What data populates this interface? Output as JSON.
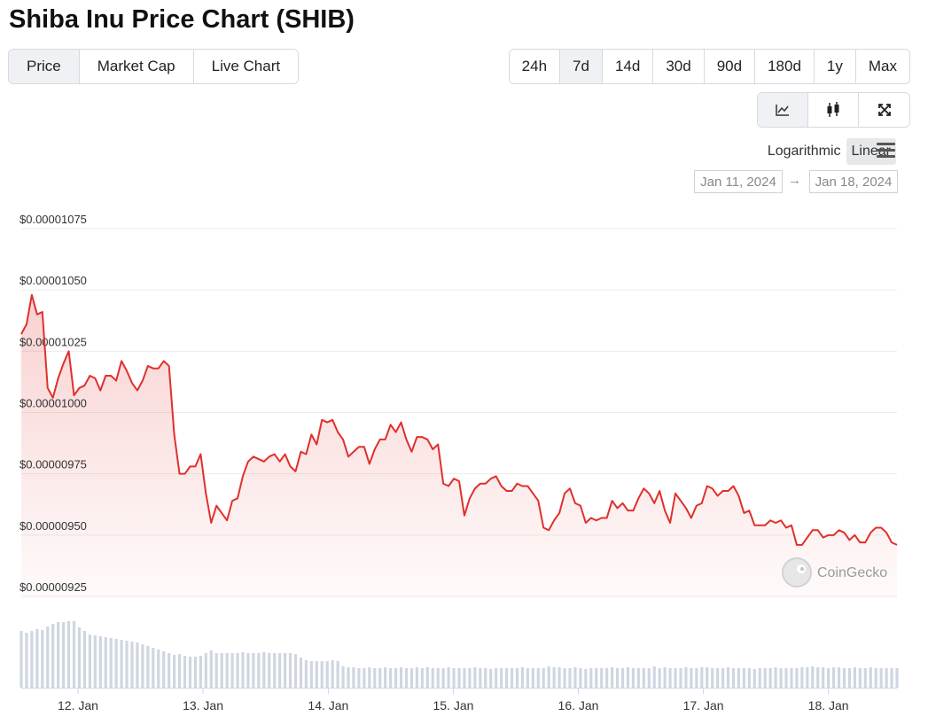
{
  "title": "Shiba Inu Price Chart (SHIB)",
  "tabs": {
    "items": [
      "Price",
      "Market Cap",
      "Live Chart"
    ],
    "active": 0
  },
  "ranges": {
    "items": [
      "24h",
      "7d",
      "14d",
      "30d",
      "90d",
      "180d",
      "1y",
      "Max"
    ],
    "active": 1
  },
  "scale_options": {
    "items": [
      "Logarithmic",
      "Linear"
    ],
    "active": 1
  },
  "date_range": {
    "from": "Jan 11, 2024",
    "separator": "→",
    "to": "Jan 18, 2024"
  },
  "chart_data": {
    "type": "line",
    "watermark": "CoinGecko",
    "log_scale": false,
    "grid": true,
    "x": [
      0,
      1,
      2,
      3,
      4,
      5,
      6,
      7,
      8,
      9,
      10,
      11,
      12,
      13,
      14,
      15,
      16,
      17,
      18,
      19,
      20,
      21,
      22,
      23,
      24,
      25,
      26,
      27,
      28,
      29,
      30,
      31,
      32,
      33,
      34,
      35,
      36,
      37,
      38,
      39,
      40,
      41,
      42,
      43,
      44,
      45,
      46,
      47,
      48,
      49,
      50,
      51,
      52,
      53,
      54,
      55,
      56,
      57,
      58,
      59,
      60,
      61,
      62,
      63,
      64,
      65,
      66,
      67,
      68,
      69,
      70,
      71,
      72,
      73,
      74,
      75,
      76,
      77,
      78,
      79,
      80,
      81,
      82,
      83,
      84,
      85,
      86,
      87,
      88,
      89,
      90,
      91,
      92,
      93,
      94,
      95,
      96,
      97,
      98,
      99,
      100,
      101,
      102,
      103,
      104,
      105,
      106,
      107,
      108,
      109,
      110,
      111,
      112,
      113,
      114,
      115,
      116,
      117,
      118,
      119,
      120,
      121,
      122,
      123,
      124,
      125,
      126,
      127,
      128,
      129,
      130,
      131,
      132,
      133,
      134,
      135,
      136,
      137,
      138,
      139,
      140,
      141,
      142,
      143,
      144,
      145,
      146,
      147,
      148,
      149,
      150,
      151,
      152,
      153,
      154,
      155,
      156,
      157,
      158,
      159,
      160,
      161,
      162,
      163,
      164,
      165,
      166
    ],
    "series": [
      {
        "color": "#e0302c",
        "values": [
          1.032e-05,
          1.036e-05,
          1.048e-05,
          1.04e-05,
          1.041e-05,
          1.01e-05,
          1.006e-05,
          1.014e-05,
          1.02e-05,
          1.025e-05,
          1.007e-05,
          1.01e-05,
          1.011e-05,
          1.015e-05,
          1.014e-05,
          1.009e-05,
          1.015e-05,
          1.015e-05,
          1.013e-05,
          1.021e-05,
          1.017e-05,
          1.012e-05,
          1.009e-05,
          1.013e-05,
          1.019e-05,
          1.018e-05,
          1.018e-05,
          1.021e-05,
          1.019e-05,
          9.91e-06,
          9.75e-06,
          9.75e-06,
          9.78e-06,
          9.78e-06,
          9.83e-06,
          9.67e-06,
          9.55e-06,
          9.62e-06,
          9.59e-06,
          9.56e-06,
          9.64e-06,
          9.65e-06,
          9.74e-06,
          9.8e-06,
          9.82e-06,
          9.81e-06,
          9.8e-06,
          9.82e-06,
          9.83e-06,
          9.8e-06,
          9.83e-06,
          9.78e-06,
          9.76e-06,
          9.84e-06,
          9.83e-06,
          9.91e-06,
          9.87e-06,
          9.97e-06,
          9.96e-06,
          9.97e-06,
          9.92e-06,
          9.89e-06,
          9.82e-06,
          9.84e-06,
          9.86e-06,
          9.86e-06,
          9.79e-06,
          9.85e-06,
          9.89e-06,
          9.89e-06,
          9.95e-06,
          9.92e-06,
          9.96e-06,
          9.89e-06,
          9.84e-06,
          9.9e-06,
          9.9e-06,
          9.89e-06,
          9.85e-06,
          9.87e-06,
          9.71e-06,
          9.7e-06,
          9.73e-06,
          9.72e-06,
          9.58e-06,
          9.65e-06,
          9.69e-06,
          9.71e-06,
          9.71e-06,
          9.73e-06,
          9.74e-06,
          9.7e-06,
          9.68e-06,
          9.68e-06,
          9.71e-06,
          9.7e-06,
          9.7e-06,
          9.67e-06,
          9.64e-06,
          9.53e-06,
          9.52e-06,
          9.56e-06,
          9.59e-06,
          9.67e-06,
          9.69e-06,
          9.63e-06,
          9.62e-06,
          9.55e-06,
          9.57e-06,
          9.56e-06,
          9.57e-06,
          9.57e-06,
          9.64e-06,
          9.61e-06,
          9.63e-06,
          9.6e-06,
          9.6e-06,
          9.65e-06,
          9.69e-06,
          9.67e-06,
          9.63e-06,
          9.68e-06,
          9.6e-06,
          9.55e-06,
          9.67e-06,
          9.64e-06,
          9.61e-06,
          9.57e-06,
          9.62e-06,
          9.63e-06,
          9.7e-06,
          9.69e-06,
          9.66e-06,
          9.68e-06,
          9.68e-06,
          9.7e-06,
          9.66e-06,
          9.59e-06,
          9.6e-06,
          9.54e-06,
          9.54e-06,
          9.54e-06,
          9.56e-06,
          9.55e-06,
          9.56e-06,
          9.53e-06,
          9.54e-06,
          9.46e-06,
          9.46e-06,
          9.49e-06,
          9.52e-06,
          9.52e-06,
          9.49e-06,
          9.5e-06,
          9.5e-06,
          9.52e-06,
          9.51e-06,
          9.48e-06,
          9.5e-06,
          9.47e-06,
          9.47e-06,
          9.51e-06,
          9.53e-06,
          9.53e-06,
          9.51e-06,
          9.47e-06,
          9.46e-06
        ]
      }
    ],
    "volume": {
      "color": "#cfd6e0",
      "values": [
        64,
        62,
        64,
        66,
        65,
        69,
        72,
        74,
        74,
        75,
        75,
        68,
        64,
        60,
        59,
        58,
        57,
        56,
        55,
        54,
        53,
        52,
        51,
        49,
        47,
        45,
        43,
        41,
        39,
        37,
        38,
        36,
        35,
        35,
        36,
        39,
        42,
        39,
        39,
        39,
        39,
        39,
        40,
        39,
        39,
        39,
        40,
        39,
        39,
        39,
        39,
        39,
        38,
        34,
        31,
        30,
        30,
        30,
        30,
        31,
        30,
        24,
        23,
        23,
        22,
        22,
        23,
        22,
        22,
        23,
        22,
        22,
        23,
        22,
        22,
        23,
        22,
        23,
        22,
        22,
        22,
        23,
        22,
        22,
        22,
        22,
        23,
        22,
        22,
        21,
        22,
        22,
        22,
        22,
        22,
        23,
        22,
        22,
        22,
        22,
        24,
        23,
        23,
        22,
        22,
        23,
        22,
        21,
        22,
        22,
        22,
        22,
        23,
        22,
        22,
        23,
        22,
        22,
        22,
        22,
        24,
        22,
        23,
        22,
        22,
        22,
        23,
        22,
        22,
        23,
        23,
        22,
        22,
        22,
        23,
        22,
        22,
        22,
        22,
        21,
        22,
        22,
        22,
        23,
        22,
        22,
        22,
        22,
        23,
        23,
        24,
        23,
        23,
        22,
        23,
        23,
        22,
        22,
        23,
        22,
        22,
        23,
        22,
        22,
        22,
        22,
        22
      ]
    },
    "xlim": [
      0,
      166
    ],
    "xticks": [
      {
        "value": 10.75,
        "label": "12. Jan"
      },
      {
        "value": 34.45,
        "label": "13. Jan"
      },
      {
        "value": 58.2,
        "label": "14. Jan"
      },
      {
        "value": 81.9,
        "label": "15. Jan"
      },
      {
        "value": 105.6,
        "label": "16. Jan"
      },
      {
        "value": 129.3,
        "label": "17. Jan"
      },
      {
        "value": 153,
        "label": "18. Jan"
      }
    ],
    "ylim": [
      9.25e-06,
      1.075e-05
    ],
    "yticks": [
      {
        "value": 9.25e-06,
        "label": "$0.00000925"
      },
      {
        "value": 9.5e-06,
        "label": "$0.00000950"
      },
      {
        "value": 9.75e-06,
        "label": "$0.00000975"
      },
      {
        "value": 1e-05,
        "label": "$0.00001000"
      },
      {
        "value": 1.025e-05,
        "label": "$0.00001025"
      },
      {
        "value": 1.05e-05,
        "label": "$0.00001050"
      },
      {
        "value": 1.075e-05,
        "label": "$0.00001075"
      }
    ]
  }
}
